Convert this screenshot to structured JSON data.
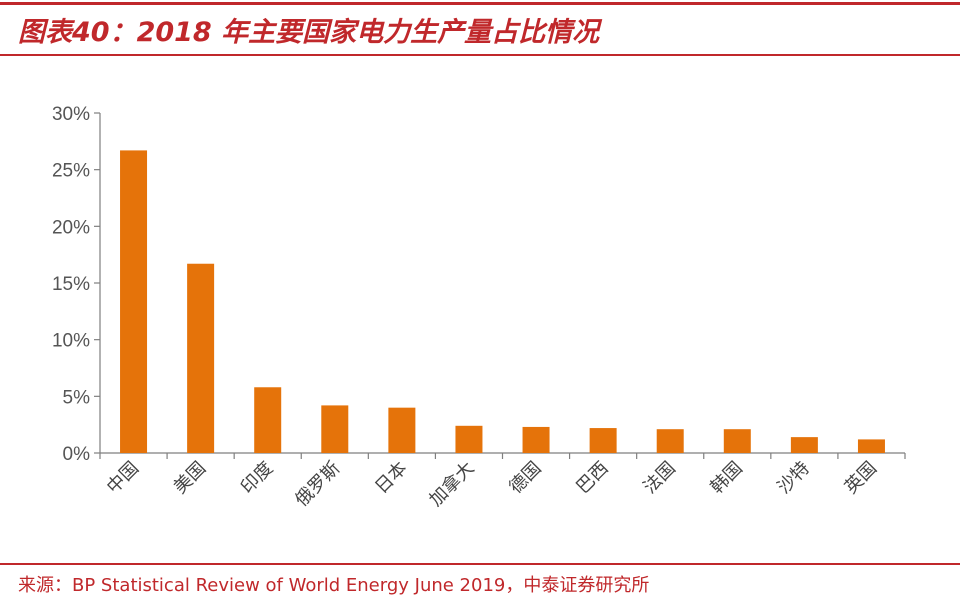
{
  "header": {
    "title": "图表40：2018 年主要国家电力生产量占比情况"
  },
  "footer": {
    "source": "来源：BP Statistical Review of World Energy June 2019，中泰证券研究所"
  },
  "colors": {
    "accent": "#c0282b",
    "bar": "#e5730a",
    "axis": "#7f7f7f"
  },
  "chart_data": {
    "type": "bar",
    "title": "",
    "xlabel": "",
    "ylabel": "",
    "ylim": [
      0,
      30
    ],
    "yticks": [
      "0%",
      "5%",
      "10%",
      "15%",
      "20%",
      "25%",
      "30%"
    ],
    "grid": false,
    "legend": "none",
    "categories": [
      "中国",
      "美国",
      "印度",
      "俄罗斯",
      "日本",
      "加拿大",
      "德国",
      "巴西",
      "法国",
      "韩国",
      "沙特",
      "英国"
    ],
    "values": [
      26.7,
      16.7,
      5.8,
      4.2,
      4.0,
      2.4,
      2.3,
      2.2,
      2.1,
      2.1,
      1.4,
      1.2
    ]
  }
}
